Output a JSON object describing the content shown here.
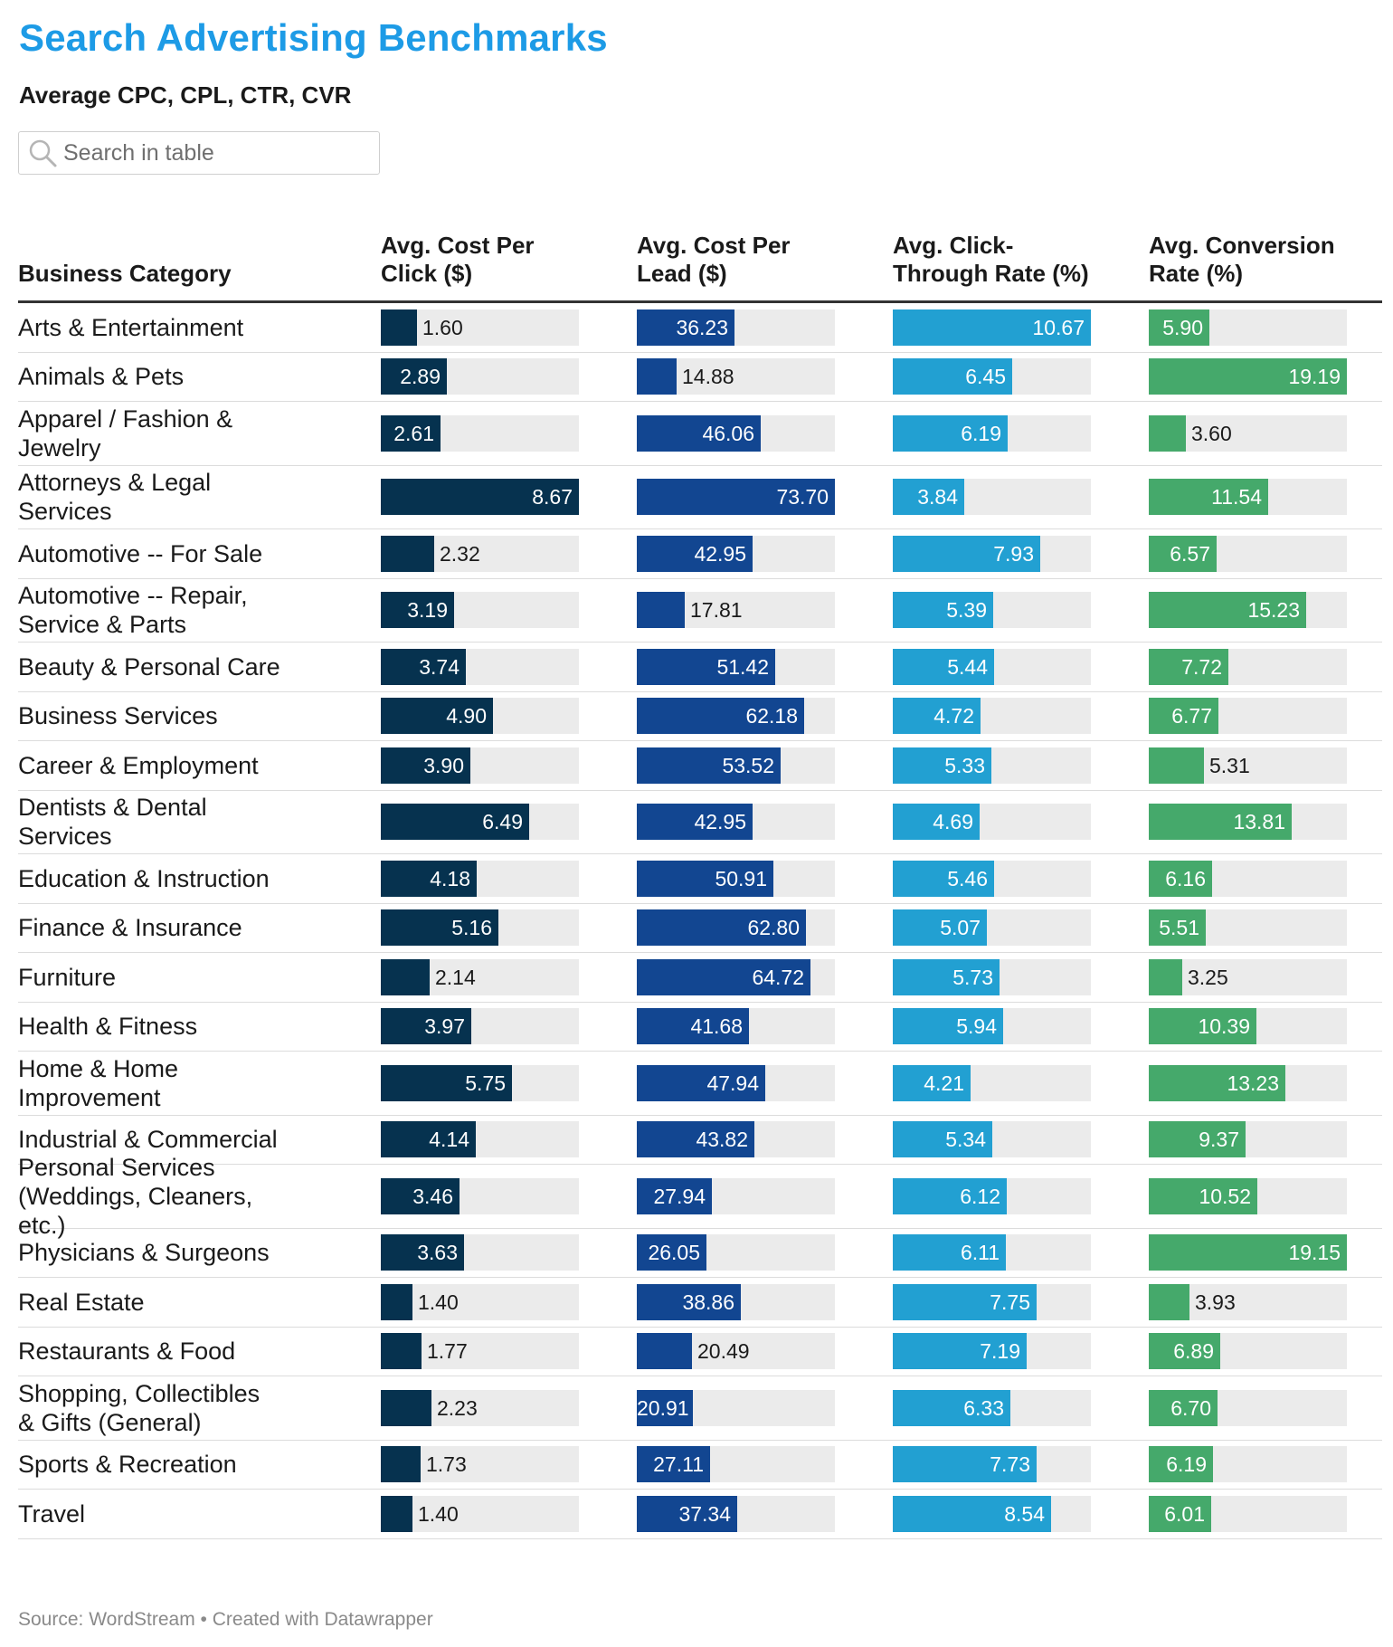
{
  "title": "Search Advertising Benchmarks",
  "subtitle": "Average CPC, CPL, CTR, CVR",
  "search": {
    "placeholder": "Search in table",
    "icon": "magnifier-icon"
  },
  "footer": {
    "source": "Source: WordStream",
    "separator": "•",
    "credit": "Created with Datawrapper"
  },
  "colors": {
    "title": "#1d9be6",
    "cpc": "#06324f",
    "cpl": "#124691",
    "ctr": "#22a0d2",
    "cvr": "#45a96b",
    "track": "#ebebeb"
  },
  "chart_data": {
    "type": "table",
    "columns": [
      {
        "key": "category",
        "label": "Business Category"
      },
      {
        "key": "cpc",
        "label": "Avg. Cost Per Click ($)",
        "max": 8.67
      },
      {
        "key": "cpl",
        "label": "Avg. Cost Per Lead ($)",
        "max": 73.7
      },
      {
        "key": "ctr",
        "label": "Avg. Click-Through Rate (%)",
        "max": 10.67
      },
      {
        "key": "cvr",
        "label": "Avg. Conversion Rate (%)",
        "max": 19.19
      }
    ],
    "rows": [
      {
        "category": "Arts & Entertainment",
        "cpc": 1.6,
        "cpl": 36.23,
        "ctr": 10.67,
        "cvr": 5.9
      },
      {
        "category": "Animals & Pets",
        "cpc": 2.89,
        "cpl": 14.88,
        "ctr": 6.45,
        "cvr": 19.19
      },
      {
        "category": "Apparel / Fashion & Jewelry",
        "cpc": 2.61,
        "cpl": 46.06,
        "ctr": 6.19,
        "cvr": 3.6
      },
      {
        "category": "Attorneys & Legal Services",
        "cpc": 8.67,
        "cpl": 73.7,
        "ctr": 3.84,
        "cvr": 11.54
      },
      {
        "category": "Automotive -- For Sale",
        "cpc": 2.32,
        "cpl": 42.95,
        "ctr": 7.93,
        "cvr": 6.57
      },
      {
        "category": "Automotive -- Repair, Service & Parts",
        "cpc": 3.19,
        "cpl": 17.81,
        "ctr": 5.39,
        "cvr": 15.23
      },
      {
        "category": "Beauty & Personal Care",
        "cpc": 3.74,
        "cpl": 51.42,
        "ctr": 5.44,
        "cvr": 7.72
      },
      {
        "category": "Business Services",
        "cpc": 4.9,
        "cpl": 62.18,
        "ctr": 4.72,
        "cvr": 6.77
      },
      {
        "category": "Career & Employment",
        "cpc": 3.9,
        "cpl": 53.52,
        "ctr": 5.33,
        "cvr": 5.31
      },
      {
        "category": "Dentists & Dental Services",
        "cpc": 6.49,
        "cpl": 42.95,
        "ctr": 4.69,
        "cvr": 13.81
      },
      {
        "category": "Education & Instruction",
        "cpc": 4.18,
        "cpl": 50.91,
        "ctr": 5.46,
        "cvr": 6.16
      },
      {
        "category": "Finance & Insurance",
        "cpc": 5.16,
        "cpl": 62.8,
        "ctr": 5.07,
        "cvr": 5.51
      },
      {
        "category": "Furniture",
        "cpc": 2.14,
        "cpl": 64.72,
        "ctr": 5.73,
        "cvr": 3.25
      },
      {
        "category": "Health & Fitness",
        "cpc": 3.97,
        "cpl": 41.68,
        "ctr": 5.94,
        "cvr": 10.39
      },
      {
        "category": "Home & Home Improvement",
        "cpc": 5.75,
        "cpl": 47.94,
        "ctr": 4.21,
        "cvr": 13.23
      },
      {
        "category": "Industrial & Commercial",
        "cpc": 4.14,
        "cpl": 43.82,
        "ctr": 5.34,
        "cvr": 9.37
      },
      {
        "category": "Personal Services (Weddings, Cleaners, etc.)",
        "cpc": 3.46,
        "cpl": 27.94,
        "ctr": 6.12,
        "cvr": 10.52
      },
      {
        "category": "Physicians & Surgeons",
        "cpc": 3.63,
        "cpl": 26.05,
        "ctr": 6.11,
        "cvr": 19.15
      },
      {
        "category": "Real Estate",
        "cpc": 1.4,
        "cpl": 38.86,
        "ctr": 7.75,
        "cvr": 3.93
      },
      {
        "category": "Restaurants & Food",
        "cpc": 1.77,
        "cpl": 20.49,
        "ctr": 7.19,
        "cvr": 6.89
      },
      {
        "category": "Shopping, Collectibles & Gifts (General)",
        "cpc": 2.23,
        "cpl": 20.91,
        "ctr": 6.33,
        "cvr": 6.7
      },
      {
        "category": "Sports & Recreation",
        "cpc": 1.73,
        "cpl": 27.11,
        "ctr": 7.73,
        "cvr": 6.19
      },
      {
        "category": "Travel",
        "cpc": 1.4,
        "cpl": 37.34,
        "ctr": 8.54,
        "cvr": 6.01
      }
    ]
  }
}
